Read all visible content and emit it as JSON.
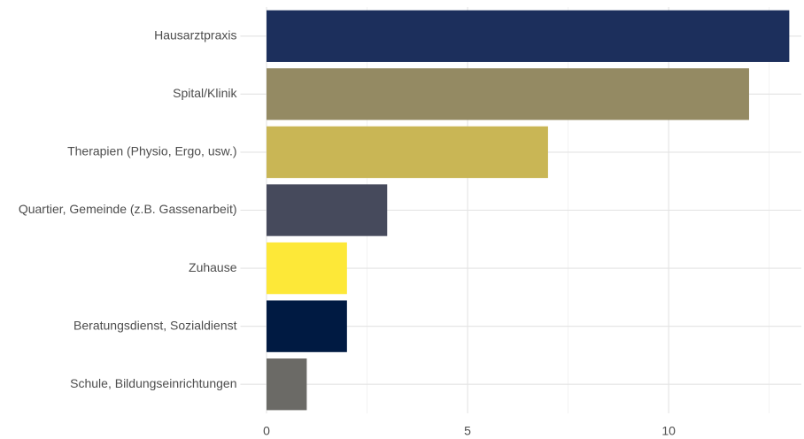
{
  "chart_data": {
    "type": "barh",
    "categories": [
      "Hausarztpraxis",
      "Spital/Klinik",
      "Therapien (Physio, Ergo, usw.)",
      "Quartier, Gemeinde (z.B. Gassenarbeit)",
      "Zuhause",
      "Beratungsdienst, Sozialdienst",
      "Schule, Bildungseinrichtungen"
    ],
    "values": [
      13,
      12,
      7,
      3,
      2,
      2,
      1
    ],
    "colors": [
      "#1c2f5c",
      "#948a63",
      "#c9b655",
      "#464a5c",
      "#fde838",
      "#001a42",
      "#6b6a66"
    ],
    "xlim": [
      -0.65,
      13.3
    ],
    "xticks": [
      0,
      5,
      10
    ],
    "xminor_ticks": [
      2.5,
      7.5,
      12.5
    ],
    "grid": true
  }
}
